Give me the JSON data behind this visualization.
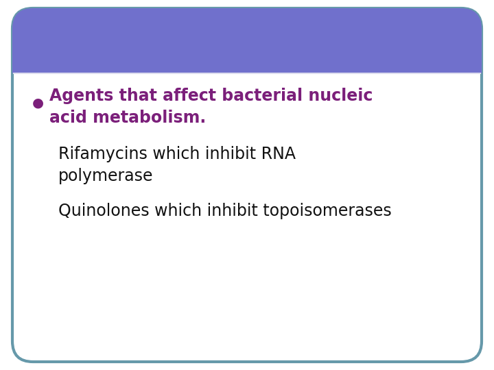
{
  "background_color": "#ffffff",
  "slide_bg": "#f0f0f8",
  "header_color": "#7070cc",
  "border_color": "#6699aa",
  "bullet_color": "#7B1F7A",
  "bullet_text_color": "#7B1F7A",
  "body_text_color": "#111111",
  "bullet_char": "●",
  "bullet_line1": "Agents that affect bacterial nucleic",
  "bullet_line2": "acid metabolism.",
  "sub_bullet1_line1": "Rifamycins which inhibit RNA",
  "sub_bullet1_line2": "polymerase",
  "sub_bullet2": "Quinolones which inhibit topoisomerases",
  "fig_width": 7.2,
  "fig_height": 5.4,
  "dpi": 100
}
